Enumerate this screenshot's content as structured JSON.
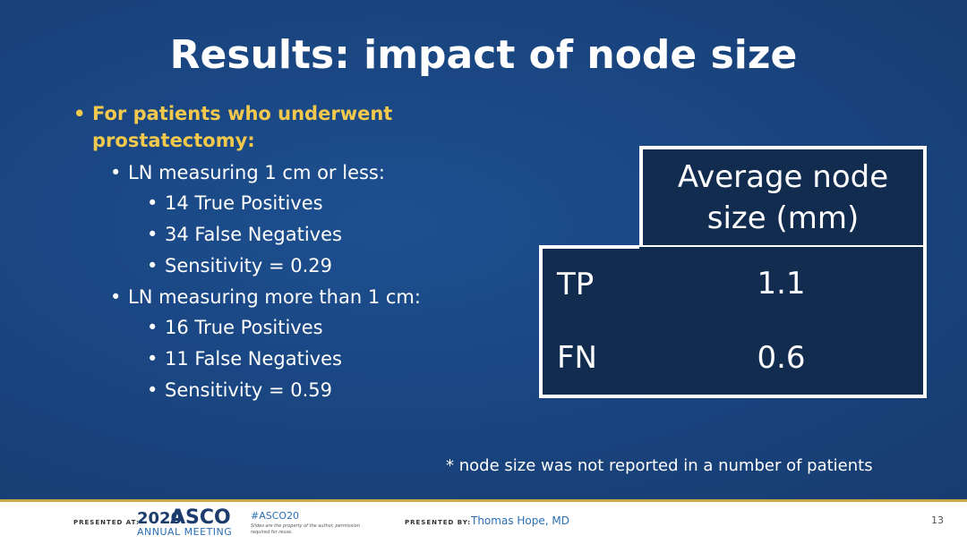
{
  "slide": {
    "title": "Results: impact of node size",
    "bullets": {
      "main": "For patients who underwent prostatectomy:",
      "group1": {
        "label": "LN measuring 1 cm or less:",
        "items": [
          "14 True Positives",
          "34 False Negatives",
          "Sensitivity = 0.29"
        ]
      },
      "group2": {
        "label": "LN measuring more than 1 cm:",
        "items": [
          "16 True Positives",
          "11 False Negatives",
          "Sensitivity = 0.59"
        ]
      }
    },
    "table": {
      "header": "Average node size (mm)",
      "rows": [
        {
          "label": "TP",
          "value": "1.1"
        },
        {
          "label": "FN",
          "value": "0.6"
        }
      ]
    },
    "note": "* node size was not reported in a number of patients",
    "bullet_glyph": "•",
    "colors": {
      "background": "#1a4682",
      "title": "#ffffff",
      "highlight": "#f2c94c",
      "table_cell": "#122c4f",
      "footer_rule": "#c9a94a"
    }
  },
  "footer": {
    "presented_at": "PRESENTED AT:",
    "asco_year": "2020",
    "asco_name": "ASCO",
    "asco_meeting": "ANNUAL MEETING",
    "hashtag": "#ASCO20",
    "disclaimer": "Slides are the property of the author, permission required for reuse.",
    "presented_by": "PRESENTED BY:",
    "presenter": "Thomas Hope, MD",
    "page_number": "13"
  }
}
